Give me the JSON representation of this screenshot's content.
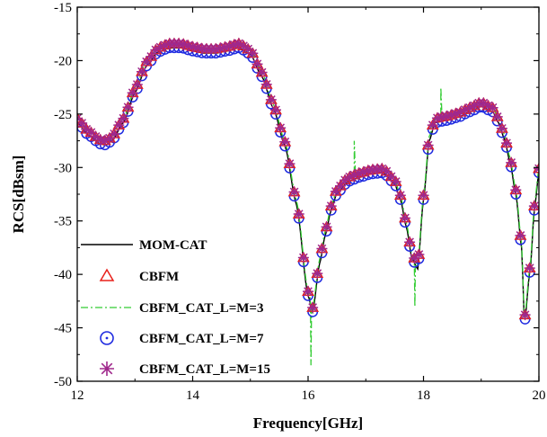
{
  "chart_data": {
    "type": "line",
    "title": "",
    "xlabel": "Frequency[GHz]",
    "ylabel": "RCS[dBsm]",
    "xlim": [
      12,
      20
    ],
    "ylim": [
      -50,
      -15
    ],
    "xticks": [
      12,
      14,
      16,
      18,
      20
    ],
    "yticks": [
      -50,
      -45,
      -40,
      -35,
      -30,
      -25,
      -20,
      -15
    ],
    "xtick_labels": [
      "12",
      "14",
      "16",
      "18",
      "20"
    ],
    "ytick_labels": [
      "-50",
      "-45",
      "-40",
      "-35",
      "-30",
      "-25",
      "-20",
      "-15"
    ],
    "legend_position": "bottom-left",
    "colors": {
      "MOM-CAT": "#000000",
      "CBFM": "#e8201a",
      "CBFM_CAT_L=M=3": "#33cc33",
      "CBFM_CAT_L=M=7": "#1f2be0",
      "CBFM_CAT_L=M=15": "#a0288c"
    },
    "base_curve": [
      [
        12.0,
        -25.8
      ],
      [
        12.2,
        -27.0
      ],
      [
        12.4,
        -27.8
      ],
      [
        12.5,
        -27.9
      ],
      [
        12.6,
        -27.5
      ],
      [
        12.8,
        -25.8
      ],
      [
        13.0,
        -23.0
      ],
      [
        13.2,
        -20.5
      ],
      [
        13.4,
        -19.2
      ],
      [
        13.6,
        -18.8
      ],
      [
        13.8,
        -18.8
      ],
      [
        14.0,
        -19.1
      ],
      [
        14.2,
        -19.3
      ],
      [
        14.4,
        -19.3
      ],
      [
        14.6,
        -19.1
      ],
      [
        14.8,
        -18.8
      ],
      [
        15.0,
        -19.4
      ],
      [
        15.2,
        -21.5
      ],
      [
        15.4,
        -24.5
      ],
      [
        15.6,
        -28.0
      ],
      [
        15.8,
        -33.5
      ],
      [
        16.0,
        -42.0
      ],
      [
        16.08,
        -43.5
      ],
      [
        16.2,
        -39.0
      ],
      [
        16.3,
        -36.3
      ],
      [
        16.4,
        -34.0
      ],
      [
        16.5,
        -32.4
      ],
      [
        16.7,
        -31.3
      ],
      [
        16.9,
        -30.9
      ],
      [
        17.1,
        -30.6
      ],
      [
        17.3,
        -30.5
      ],
      [
        17.5,
        -31.5
      ],
      [
        17.6,
        -33.0
      ],
      [
        17.7,
        -35.5
      ],
      [
        17.8,
        -38.5
      ],
      [
        17.9,
        -39.5
      ],
      [
        18.0,
        -33.0
      ],
      [
        18.1,
        -27.5
      ],
      [
        18.2,
        -25.8
      ],
      [
        18.4,
        -25.6
      ],
      [
        18.6,
        -25.3
      ],
      [
        18.8,
        -24.8
      ],
      [
        19.0,
        -24.3
      ],
      [
        19.2,
        -24.8
      ],
      [
        19.3,
        -25.8
      ],
      [
        19.4,
        -27.3
      ],
      [
        19.5,
        -29.5
      ],
      [
        19.6,
        -32.5
      ],
      [
        19.7,
        -37.5
      ],
      [
        19.75,
        -44.5
      ],
      [
        19.85,
        -39.5
      ],
      [
        19.92,
        -34.0
      ],
      [
        20.0,
        -30.5
      ]
    ],
    "series": [
      {
        "name": "MOM-CAT",
        "style": "solid-line",
        "offset": 0
      },
      {
        "name": "CBFM",
        "style": "triangle-markers",
        "offset": 0.35
      },
      {
        "name": "CBFM_CAT_L=M=3",
        "style": "dash-dot-line",
        "offset": 0.4,
        "deviations": [
          [
            16.05,
            -48.5
          ],
          [
            16.8,
            -27.5
          ],
          [
            17.6,
            -32.0
          ],
          [
            17.85,
            -43.0
          ],
          [
            18.3,
            -22.5
          ]
        ]
      },
      {
        "name": "CBFM_CAT_L=M=7",
        "style": "circle-markers",
        "offset": 0
      },
      {
        "name": "CBFM_CAT_L=M=15",
        "style": "star-markers",
        "offset": 0.4
      }
    ]
  }
}
